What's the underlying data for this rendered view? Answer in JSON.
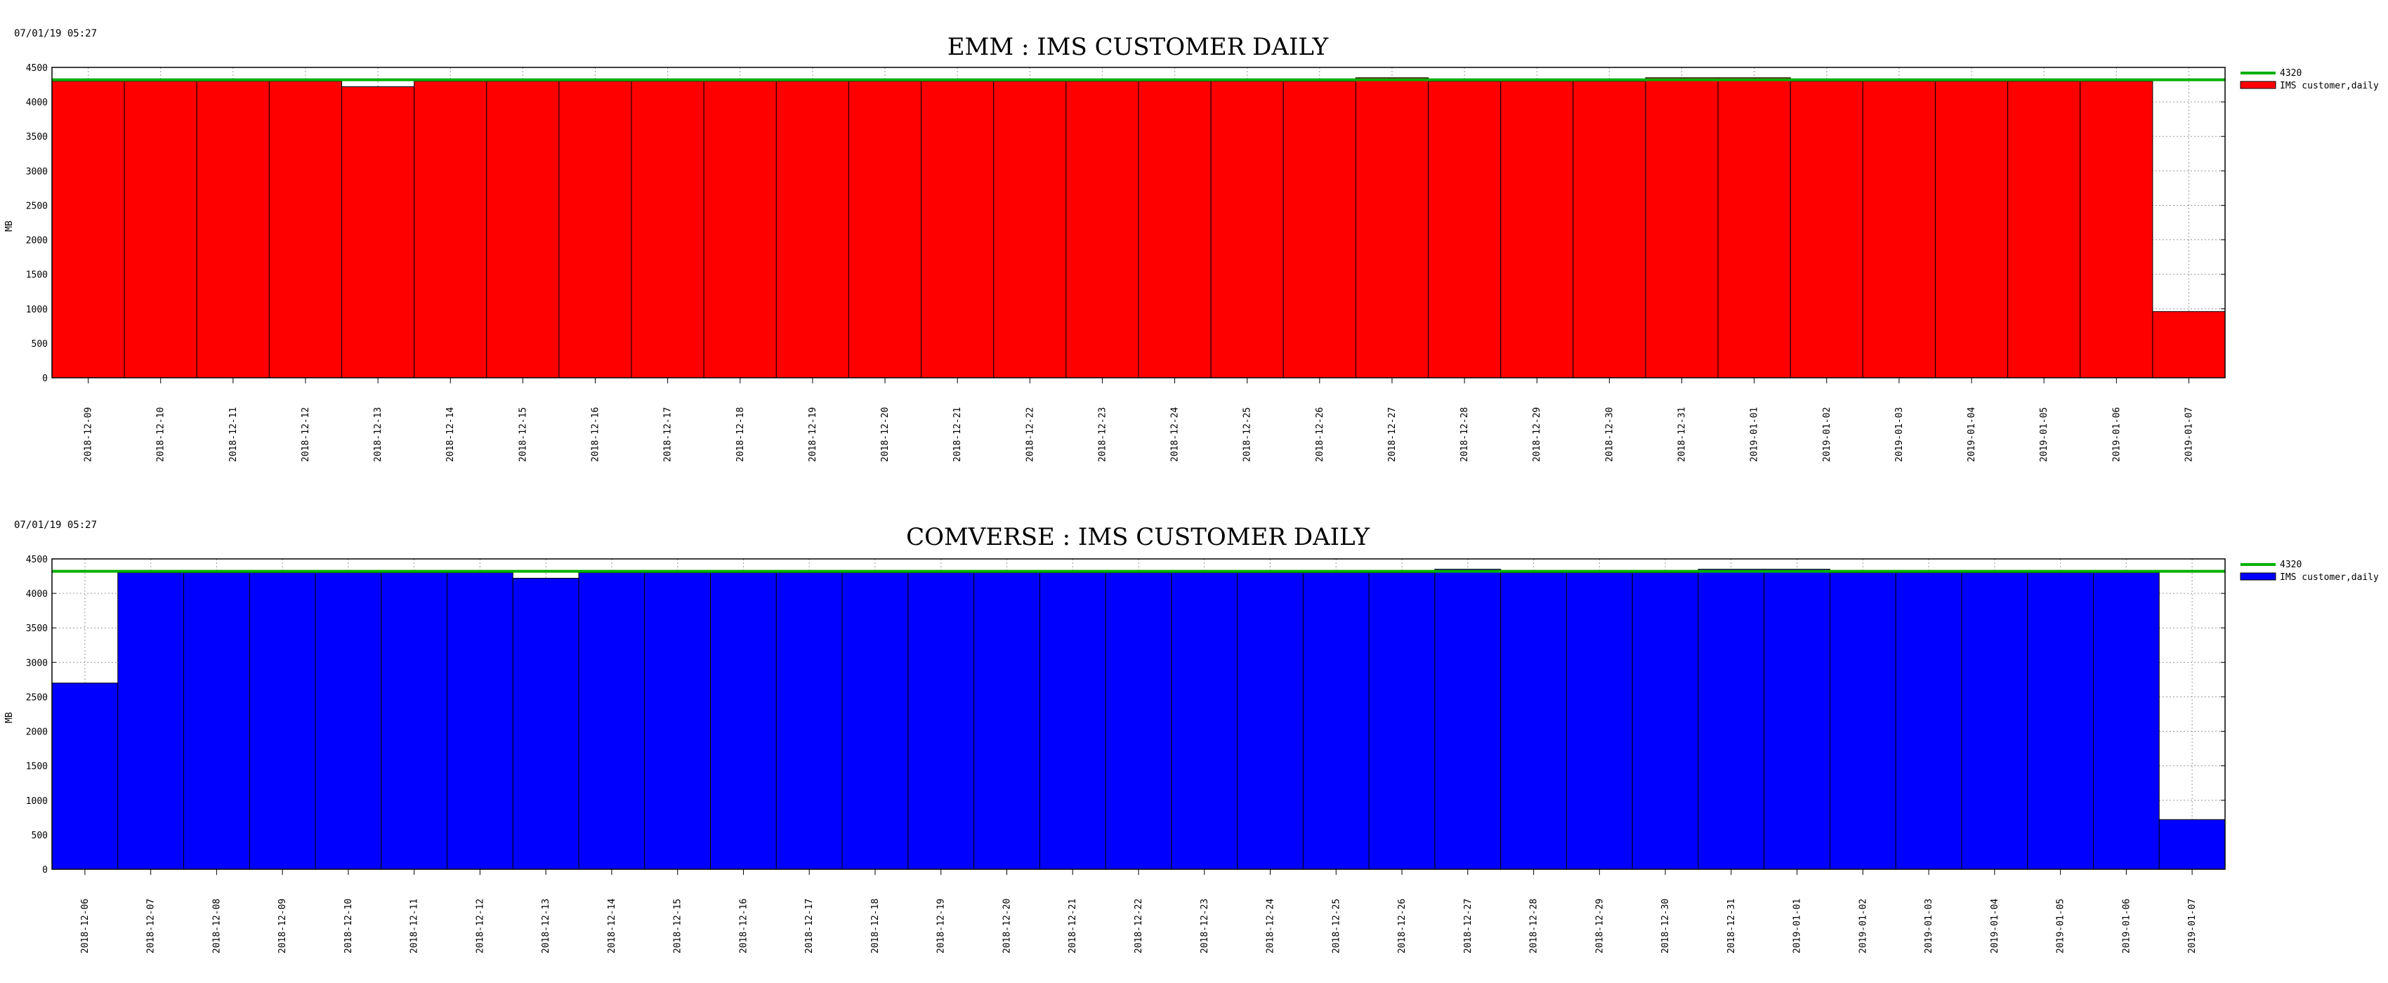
{
  "charts": [
    {
      "timestamp": "07/01/19 05:27",
      "title": "EMM : IMS CUSTOMER DAILY",
      "ylabel": "MB",
      "legend": {
        "threshold": "4320",
        "series": "IMS customer,daily"
      },
      "colors": {
        "bar": "#ff0000",
        "threshold": "#00b000"
      }
    },
    {
      "timestamp": "07/01/19 05:27",
      "title": "COMVERSE : IMS CUSTOMER DAILY",
      "ylabel": "MB",
      "legend": {
        "threshold": "4320",
        "series": "IMS customer,daily"
      },
      "colors": {
        "bar": "#0000ff",
        "threshold": "#00b000"
      }
    }
  ],
  "chart_data": [
    {
      "type": "bar",
      "title": "EMM : IMS CUSTOMER DAILY",
      "ylabel": "MB",
      "ylim": [
        0,
        4500
      ],
      "yticks": [
        0,
        500,
        1000,
        1500,
        2000,
        2500,
        3000,
        3500,
        4000,
        4500
      ],
      "grid": true,
      "legend_position": "top-right",
      "categories": [
        "2018-12-09",
        "2018-12-10",
        "2018-12-11",
        "2018-12-12",
        "2018-12-13",
        "2018-12-14",
        "2018-12-15",
        "2018-12-16",
        "2018-12-17",
        "2018-12-18",
        "2018-12-19",
        "2018-12-20",
        "2018-12-21",
        "2018-12-22",
        "2018-12-23",
        "2018-12-24",
        "2018-12-25",
        "2018-12-26",
        "2018-12-27",
        "2018-12-28",
        "2018-12-29",
        "2018-12-30",
        "2018-12-31",
        "2019-01-01",
        "2019-01-02",
        "2019-01-03",
        "2019-01-04",
        "2019-01-05",
        "2019-01-06",
        "2019-01-07"
      ],
      "series": [
        {
          "name": "IMS customer,daily",
          "values": [
            4300,
            4300,
            4300,
            4300,
            4220,
            4300,
            4300,
            4300,
            4300,
            4300,
            4300,
            4300,
            4300,
            4300,
            4300,
            4300,
            4300,
            4300,
            4350,
            4300,
            4300,
            4300,
            4350,
            4350,
            4300,
            4300,
            4300,
            4300,
            4300,
            960
          ]
        },
        {
          "name": "4320",
          "values": [
            4320,
            4320,
            4320,
            4320,
            4320,
            4320,
            4320,
            4320,
            4320,
            4320,
            4320,
            4320,
            4320,
            4320,
            4320,
            4320,
            4320,
            4320,
            4320,
            4320,
            4320,
            4320,
            4320,
            4320,
            4320,
            4320,
            4320,
            4320,
            4320,
            4320
          ]
        }
      ]
    },
    {
      "type": "bar",
      "title": "COMVERSE : IMS CUSTOMER DAILY",
      "ylabel": "MB",
      "ylim": [
        0,
        4500
      ],
      "yticks": [
        0,
        500,
        1000,
        1500,
        2000,
        2500,
        3000,
        3500,
        4000,
        4500
      ],
      "grid": true,
      "legend_position": "top-right",
      "categories": [
        "2018-12-06",
        "2018-12-07",
        "2018-12-08",
        "2018-12-09",
        "2018-12-10",
        "2018-12-11",
        "2018-12-12",
        "2018-12-13",
        "2018-12-14",
        "2018-12-15",
        "2018-12-16",
        "2018-12-17",
        "2018-12-18",
        "2018-12-19",
        "2018-12-20",
        "2018-12-21",
        "2018-12-22",
        "2018-12-23",
        "2018-12-24",
        "2018-12-25",
        "2018-12-26",
        "2018-12-27",
        "2018-12-28",
        "2018-12-29",
        "2018-12-30",
        "2018-12-31",
        "2019-01-01",
        "2019-01-02",
        "2019-01-03",
        "2019-01-04",
        "2019-01-05",
        "2019-01-06",
        "2019-01-07"
      ],
      "series": [
        {
          "name": "IMS customer,daily",
          "values": [
            2700,
            4300,
            4300,
            4300,
            4300,
            4300,
            4300,
            4220,
            4300,
            4300,
            4300,
            4300,
            4300,
            4300,
            4300,
            4300,
            4300,
            4300,
            4300,
            4300,
            4300,
            4350,
            4300,
            4300,
            4300,
            4350,
            4350,
            4300,
            4300,
            4300,
            4300,
            4300,
            720
          ]
        },
        {
          "name": "4320",
          "values": [
            4320,
            4320,
            4320,
            4320,
            4320,
            4320,
            4320,
            4320,
            4320,
            4320,
            4320,
            4320,
            4320,
            4320,
            4320,
            4320,
            4320,
            4320,
            4320,
            4320,
            4320,
            4320,
            4320,
            4320,
            4320,
            4320,
            4320,
            4320,
            4320,
            4320,
            4320,
            4320,
            4320
          ]
        }
      ]
    }
  ]
}
